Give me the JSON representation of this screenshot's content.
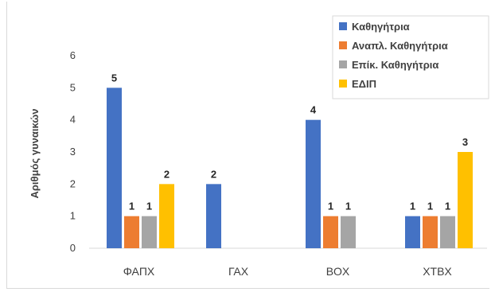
{
  "chart_data": {
    "type": "bar",
    "title": "",
    "xlabel": "",
    "ylabel": "Αριθμός γυναικών",
    "ylim": [
      0,
      6
    ],
    "yticks": [
      0,
      1,
      2,
      3,
      4,
      5,
      6
    ],
    "grid": false,
    "legend_position": "top-right",
    "categories": [
      "ΦΑΠΧ",
      "ΓΑΧ",
      "ΒΟΧ",
      "ΧΤΒΧ"
    ],
    "series": [
      {
        "name": "Καθηγήτρια",
        "color": "#4472c4",
        "values": [
          5,
          2,
          4,
          1
        ],
        "labels": [
          "5",
          "2",
          "4",
          "1"
        ]
      },
      {
        "name": "Αναπλ. Καθηγήτρια",
        "color": "#ed7d31",
        "values": [
          1,
          null,
          1,
          1
        ],
        "labels": [
          "1",
          "",
          "1",
          "1"
        ]
      },
      {
        "name": "Επίκ. Καθηγήτρια",
        "color": "#a5a5a5",
        "values": [
          1,
          null,
          1,
          1
        ],
        "labels": [
          "1",
          "",
          "1",
          "1"
        ]
      },
      {
        "name": "ΕΔΙΠ",
        "color": "#ffc000",
        "values": [
          2,
          null,
          null,
          3
        ],
        "labels": [
          "2",
          "",
          "",
          "3"
        ]
      }
    ]
  }
}
